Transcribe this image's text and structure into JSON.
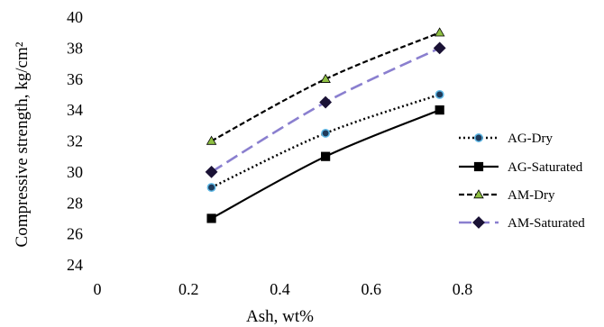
{
  "chart_data": {
    "type": "line",
    "title": "",
    "xlabel": "Ash, wt%",
    "ylabel": "Compressive strength, kg/cm²",
    "xlim": [
      0,
      0.8
    ],
    "ylim": [
      24,
      40
    ],
    "x_ticks": [
      "0",
      "0.2",
      "0.4",
      "0.6",
      "0.8"
    ],
    "y_ticks": [
      "24",
      "26",
      "28",
      "30",
      "32",
      "34",
      "36",
      "38",
      "40"
    ],
    "grid": false,
    "legend_position": "right",
    "x": [
      0.25,
      0.5,
      0.75
    ],
    "series": [
      {
        "name": "AG-Dry",
        "values": [
          29,
          32.5,
          35
        ],
        "line_style": "dotted",
        "marker": "circle",
        "line_color": "#000000",
        "marker_fill": "#1f3a5a",
        "marker_stroke": "#5fb8e6"
      },
      {
        "name": "AG-Saturated",
        "values": [
          27,
          31,
          34
        ],
        "line_style": "solid",
        "marker": "square",
        "line_color": "#000000",
        "marker_fill": "#000000",
        "marker_stroke": "#000000"
      },
      {
        "name": "AM-Dry",
        "values": [
          32,
          36,
          39
        ],
        "line_style": "dashed",
        "marker": "triangle",
        "line_color": "#000000",
        "marker_fill": "#8fc043",
        "marker_stroke": "#000000"
      },
      {
        "name": "AM-Saturated",
        "values": [
          30,
          34.5,
          38
        ],
        "line_style": "long-dash",
        "marker": "diamond",
        "line_color": "#8a7fcf",
        "marker_fill": "#1a1235",
        "marker_stroke": "#1a1235"
      }
    ]
  }
}
